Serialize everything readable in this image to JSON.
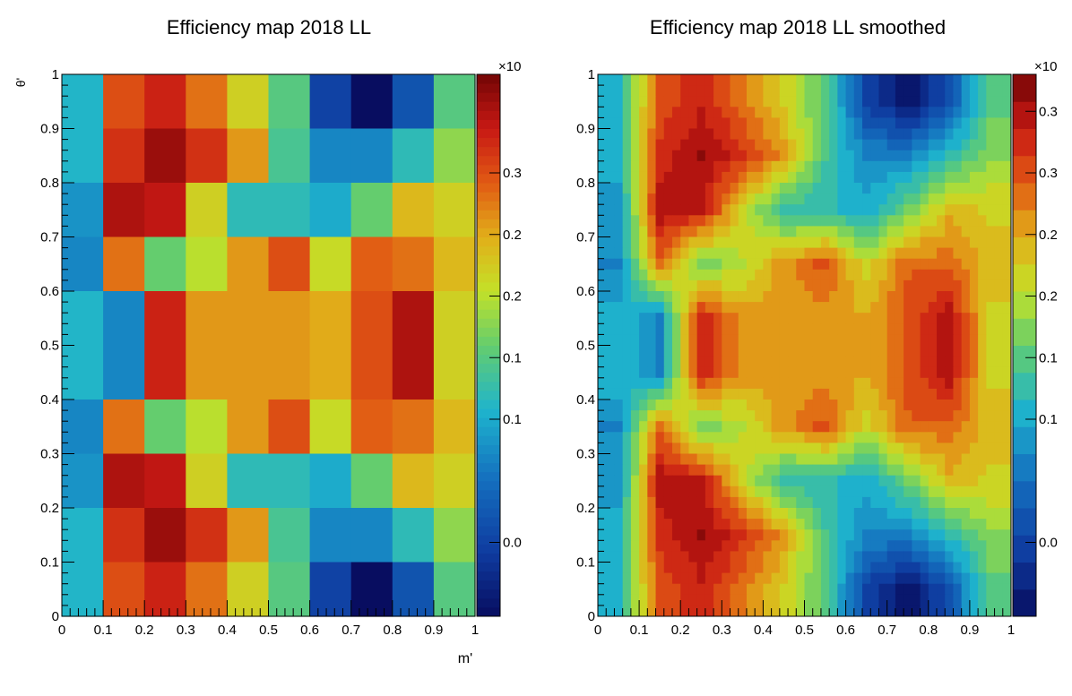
{
  "chart_data": [
    {
      "type": "heatmap",
      "title": "Efficiency map 2018 LL",
      "xlabel": "m'",
      "ylabel": "θ'",
      "xlim": [
        0,
        1
      ],
      "ylim": [
        0,
        1
      ],
      "zlim": [
        -0.06,
        0.38
      ],
      "x_ticks": [
        "0",
        "0.1",
        "0.2",
        "0.3",
        "0.4",
        "0.5",
        "0.6",
        "0.7",
        "0.8",
        "0.9",
        "1"
      ],
      "y_ticks": [
        "0",
        "0.1",
        "0.2",
        "0.3",
        "0.4",
        "0.5",
        "0.6",
        "0.7",
        "0.8",
        "0.9",
        "1"
      ],
      "colorbar_exponent": "×10",
      "colorbar_ticks": [
        "0.0",
        "0.1",
        "0.1",
        "0.2",
        "0.2",
        "0.3"
      ],
      "colorbar_tick_values": [
        0.0,
        0.1,
        0.15,
        0.2,
        0.25,
        0.3
      ],
      "x_bins": 10,
      "y_bins": 10,
      "z_rows_top_to_bottom": [
        [
          0.11,
          0.3,
          0.33,
          0.28,
          0.22,
          0.15,
          0.0,
          -0.06,
          0.02,
          0.15
        ],
        [
          0.11,
          0.32,
          0.36,
          0.32,
          0.26,
          0.14,
          0.07,
          0.07,
          0.12,
          0.18
        ],
        [
          0.08,
          0.35,
          0.34,
          0.22,
          0.12,
          0.12,
          0.1,
          0.16,
          0.24,
          0.22
        ],
        [
          0.07,
          0.28,
          0.16,
          0.2,
          0.26,
          0.3,
          0.21,
          0.29,
          0.28,
          0.24
        ],
        [
          0.11,
          0.07,
          0.33,
          0.26,
          0.26,
          0.26,
          0.25,
          0.3,
          0.35,
          0.22
        ],
        [
          0.11,
          0.07,
          0.33,
          0.26,
          0.26,
          0.26,
          0.25,
          0.3,
          0.35,
          0.22
        ],
        [
          0.07,
          0.28,
          0.16,
          0.2,
          0.26,
          0.3,
          0.21,
          0.29,
          0.28,
          0.24
        ],
        [
          0.08,
          0.35,
          0.34,
          0.22,
          0.12,
          0.12,
          0.1,
          0.16,
          0.24,
          0.22
        ],
        [
          0.11,
          0.32,
          0.36,
          0.32,
          0.26,
          0.14,
          0.07,
          0.07,
          0.12,
          0.18
        ],
        [
          0.11,
          0.3,
          0.33,
          0.28,
          0.22,
          0.15,
          0.0,
          -0.06,
          0.02,
          0.15
        ]
      ]
    },
    {
      "type": "heatmap",
      "title": "Efficiency map 2018 LL smoothed",
      "xlabel": "",
      "ylabel": "",
      "xlim": [
        0,
        1
      ],
      "ylim": [
        0,
        1
      ],
      "zlim": [
        -0.06,
        0.38
      ],
      "x_ticks": [
        "0",
        "0.1",
        "0.2",
        "0.3",
        "0.4",
        "0.5",
        "0.6",
        "0.7",
        "0.8",
        "0.9",
        "1"
      ],
      "y_ticks": [
        "0",
        "0.1",
        "0.2",
        "0.3",
        "0.4",
        "0.5",
        "0.6",
        "0.7",
        "0.8",
        "0.9",
        "1"
      ],
      "colorbar_exponent": "×10",
      "colorbar_ticks": [
        "0.0",
        "0.1",
        "0.1",
        "0.2",
        "0.2",
        "0.3",
        "0.3"
      ],
      "colorbar_tick_values": [
        0.0,
        0.1,
        0.15,
        0.2,
        0.25,
        0.3,
        0.35
      ],
      "smoothed_from": "Efficiency map 2018 LL",
      "display_bins": 50,
      "colorbar_levels": 20
    }
  ]
}
